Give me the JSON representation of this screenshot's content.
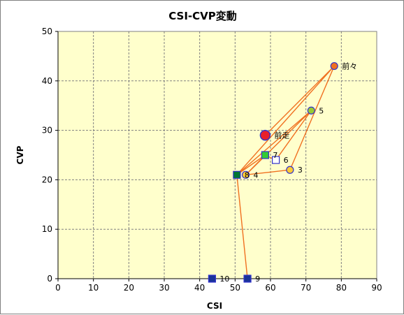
{
  "chart_data": {
    "type": "scatter",
    "title": "CSI-CVP変動",
    "xlabel": "CSI",
    "ylabel": "CVP",
    "xlim": [
      0,
      90
    ],
    "ylim": [
      0,
      50
    ],
    "xticks": [
      0,
      10,
      20,
      30,
      40,
      50,
      60,
      70,
      80,
      90
    ],
    "yticks": [
      0,
      10,
      20,
      30,
      40,
      50
    ],
    "grid": true,
    "plot_background": "#ffffcc",
    "line_color": "#f07020",
    "points": [
      {
        "label": "前走",
        "x": 58.5,
        "y": 29,
        "marker": "circle-large",
        "fill": "#e8202a",
        "stroke": "#3333cc"
      },
      {
        "label": "前々",
        "x": 78,
        "y": 43,
        "marker": "circle",
        "fill": "#f07020",
        "stroke": "#3333cc"
      },
      {
        "label": "3",
        "x": 65.5,
        "y": 22,
        "marker": "circle",
        "fill": "#ffcc33",
        "stroke": "#3333cc"
      },
      {
        "label": "4",
        "x": 53,
        "y": 21,
        "marker": "circle",
        "fill": "#ffcc33",
        "stroke": "#3333cc"
      },
      {
        "label": "5",
        "x": 71.5,
        "y": 34,
        "marker": "circle",
        "fill": "#99cc33",
        "stroke": "#3333cc"
      },
      {
        "label": "6",
        "x": 61.5,
        "y": 24,
        "marker": "square",
        "fill": "#ffffff",
        "stroke": "#3333cc"
      },
      {
        "label": "7",
        "x": 58.5,
        "y": 25,
        "marker": "square",
        "fill": "#33cc33",
        "stroke": "#3333cc"
      },
      {
        "label": "8",
        "x": 50.5,
        "y": 21,
        "marker": "square",
        "fill": "#007733",
        "stroke": "#3333cc"
      },
      {
        "label": "9",
        "x": 53.5,
        "y": 0,
        "marker": "square",
        "fill": "#1a3399",
        "stroke": "#3333cc"
      },
      {
        "label": "10",
        "x": 43.5,
        "y": 0,
        "marker": "square",
        "fill": "#1a3399",
        "stroke": "#3333cc"
      }
    ],
    "connections": [
      [
        "前走",
        "前々"
      ],
      [
        "前々",
        "3"
      ],
      [
        "3",
        "4"
      ],
      [
        "4",
        "5"
      ],
      [
        "5",
        "6"
      ],
      [
        "6",
        "7"
      ],
      [
        "7",
        "8"
      ],
      [
        "8",
        "9"
      ],
      [
        "5",
        "8"
      ],
      [
        "前々",
        "8"
      ],
      [
        "7",
        "4"
      ]
    ]
  }
}
